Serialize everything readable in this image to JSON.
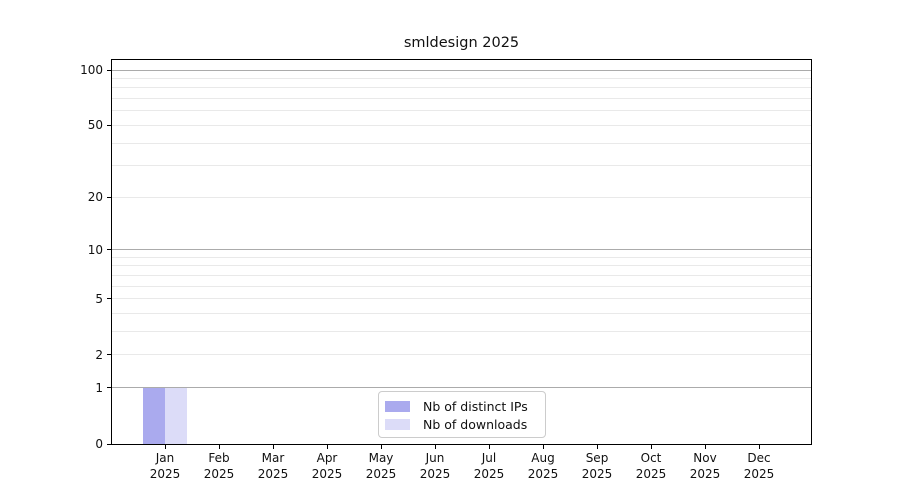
{
  "figure": {
    "background": "#ffffff",
    "axis_color": "#000000",
    "text_color": "#111111"
  },
  "chart_data": {
    "type": "bar",
    "title": "smldesign 2025",
    "xlabel": "",
    "ylabel": "",
    "year_label": "2025",
    "categories": [
      "Jan",
      "Feb",
      "Mar",
      "Apr",
      "May",
      "Jun",
      "Jul",
      "Aug",
      "Sep",
      "Oct",
      "Nov",
      "Dec"
    ],
    "series": [
      {
        "name": "Nb of distinct IPs",
        "color": "#aaaaee",
        "values": [
          1,
          0,
          0,
          0,
          0,
          0,
          0,
          0,
          0,
          0,
          0,
          0
        ]
      },
      {
        "name": "Nb of downloads",
        "color": "#dcdcf8",
        "values": [
          1,
          0,
          0,
          0,
          0,
          0,
          0,
          0,
          0,
          0,
          0,
          0
        ]
      }
    ],
    "yscale": "log1p",
    "ylim": [
      0,
      113
    ],
    "ytick_values": [
      0,
      1,
      2,
      5,
      10,
      20,
      50,
      100
    ],
    "grid": {
      "major_values": [
        1,
        10,
        100
      ],
      "minor_values": [
        2,
        3,
        4,
        5,
        6,
        7,
        8,
        9,
        20,
        30,
        40,
        50,
        60,
        70,
        80,
        90
      ],
      "major_color": "#ababab",
      "minor_color": "#e9e9e9"
    },
    "legend": {
      "position": "lower center",
      "labels": [
        "Nb of distinct IPs",
        "Nb of downloads"
      ]
    }
  }
}
